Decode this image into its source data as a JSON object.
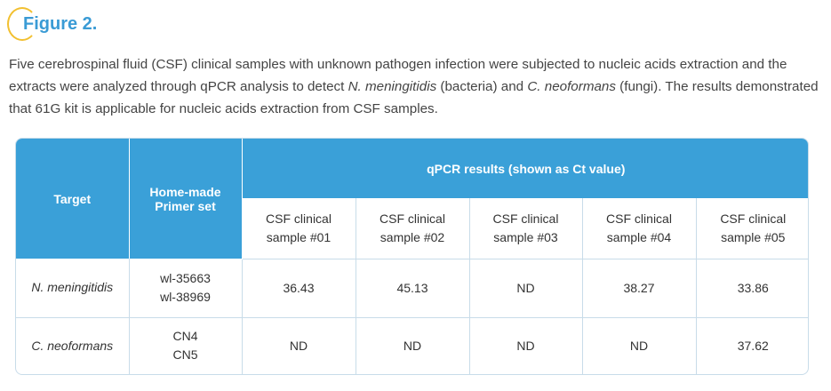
{
  "figure": {
    "title": "Figure 2."
  },
  "caption": {
    "part1": "Five cerebrospinal fluid (CSF) clinical samples with unknown pathogen infection were subjected to nucleic acids extraction and the extracts were analyzed through qPCR analysis to detect ",
    "organism1": "N. meningitidis",
    "part2": " (bacteria) and ",
    "organism2": "C. neoformans",
    "part3": " (fungi). The results demonstrated that 61G kit is applicable for nucleic acids extraction from CSF samples."
  },
  "table": {
    "header": {
      "target": "Target",
      "primer_line1": "Home-made",
      "primer_line2": "Primer set",
      "results": "qPCR results (shown as Ct value)"
    },
    "samples": [
      {
        "line1": "CSF clinical",
        "line2": "sample #01"
      },
      {
        "line1": "CSF clinical",
        "line2": "sample #02"
      },
      {
        "line1": "CSF clinical",
        "line2": "sample #03"
      },
      {
        "line1": "CSF clinical",
        "line2": "sample #04"
      },
      {
        "line1": "CSF clinical",
        "line2": "sample #05"
      }
    ],
    "rows": [
      {
        "target": "N. meningitidis",
        "primer1": "wl-35663",
        "primer2": "wl-38969",
        "values": [
          "36.43",
          "45.13",
          "ND",
          "38.27",
          "33.86"
        ]
      },
      {
        "target": "C. neoformans",
        "primer1": "CN4",
        "primer2": "CN5",
        "values": [
          "ND",
          "ND",
          "ND",
          "ND",
          "37.62"
        ]
      }
    ]
  },
  "colors": {
    "header_blue": "#3aa0d8",
    "title_blue": "#3a9bd5",
    "accent_yellow": "#f2c030",
    "border": "#c8dce9"
  }
}
